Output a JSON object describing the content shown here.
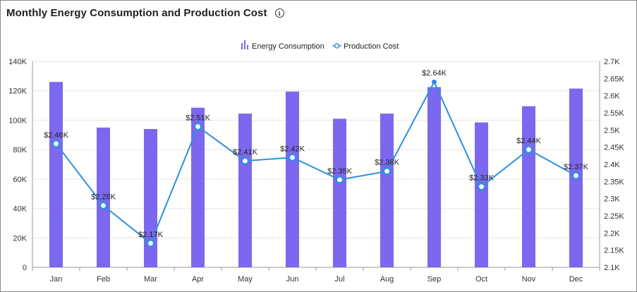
{
  "header": {
    "title": "Monthly Energy Consumption and Production Cost",
    "info_icon": "info-icon"
  },
  "colors": {
    "bar": "#7B68EE",
    "line": "#2F8FE0",
    "grid": "#e6e6e6",
    "axis": "#999999"
  },
  "chart_data": {
    "type": "bar",
    "categories": [
      "Jan",
      "Feb",
      "Mar",
      "Apr",
      "May",
      "Jun",
      "Jul",
      "Aug",
      "Sep",
      "Oct",
      "Nov",
      "Dec"
    ],
    "series": [
      {
        "name": "Energy Consumption",
        "type": "bar",
        "axis": "left",
        "values": [
          126000,
          95000,
          94000,
          108500,
          104500,
          119500,
          101000,
          104500,
          122500,
          98500,
          109500,
          121500
        ]
      },
      {
        "name": "Production Cost",
        "type": "line",
        "axis": "right",
        "values": [
          2.46,
          2.28,
          2.17,
          2.51,
          2.41,
          2.42,
          2.355,
          2.38,
          2.64,
          2.335,
          2.443,
          2.367
        ],
        "labels": [
          "$2.46K",
          "$2.28K",
          "$2.17K",
          "$2.51K",
          "$2.41K",
          "$2.42K",
          "$2.35K",
          "$2.38K",
          "$2.64K",
          "$2.33K",
          "$2.44K",
          "$2.37K"
        ]
      }
    ],
    "y_left": {
      "min": 0,
      "max": 140000,
      "ticks": [
        0,
        20000,
        40000,
        60000,
        80000,
        100000,
        120000,
        140000
      ],
      "tick_labels": [
        "0",
        "20K",
        "40K",
        "60K",
        "80K",
        "100K",
        "120K",
        "140K"
      ]
    },
    "y_right": {
      "min": 2.1,
      "max": 2.7,
      "ticks": [
        2.1,
        2.15,
        2.2,
        2.25,
        2.3,
        2.35,
        2.4,
        2.45,
        2.5,
        2.55,
        2.6,
        2.65,
        2.7
      ],
      "tick_labels": [
        "2.1K",
        "2.15K",
        "2.2K",
        "2.25K",
        "2.3K",
        "2.35K",
        "2.4K",
        "2.45K",
        "2.5K",
        "2.55K",
        "2.6K",
        "2.65K",
        "2.7K"
      ]
    },
    "grid": true,
    "legend_position": "top-center"
  }
}
